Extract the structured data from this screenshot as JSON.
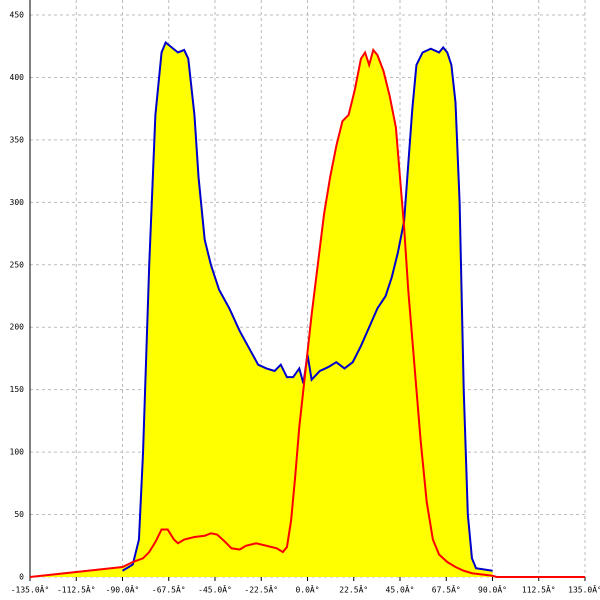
{
  "chart_data": {
    "type": "area",
    "xlim": [
      -135,
      135
    ],
    "ylim": [
      0,
      450
    ],
    "xticks": [
      {
        "value": -135,
        "label": "-135.0Â°"
      },
      {
        "value": -112.5,
        "label": "-112.5Â°"
      },
      {
        "value": -90,
        "label": "-90.0Â°"
      },
      {
        "value": -67.5,
        "label": "-67.5Â°"
      },
      {
        "value": -45,
        "label": "-45.0Â°"
      },
      {
        "value": -22.5,
        "label": "-22.5Â°"
      },
      {
        "value": 0,
        "label": "0.0Â°"
      },
      {
        "value": 22.5,
        "label": "22.5Â°"
      },
      {
        "value": 45,
        "label": "45.0Â°"
      },
      {
        "value": 67.5,
        "label": "67.5Â°"
      },
      {
        "value": 90,
        "label": "90.0Â°"
      },
      {
        "value": 112.5,
        "label": "112.5Â°"
      },
      {
        "value": 135,
        "label": "135.0Â°"
      }
    ],
    "yticks": [
      0,
      50,
      100,
      150,
      200,
      250,
      300,
      350,
      400,
      450
    ],
    "grid": true,
    "fill_color": "#ffff00",
    "series": [
      {
        "color": "#0000cc",
        "x": [
          -90,
          -85,
          -82,
          -80,
          -77,
          -74,
          -71,
          -69,
          -66,
          -63,
          -60,
          -58,
          -55,
          -53,
          -50,
          -47,
          -43,
          -38,
          -33,
          -28,
          -24,
          -20,
          -16,
          -13,
          -10,
          -7,
          -4,
          -2,
          0,
          2,
          6,
          10,
          14,
          18,
          22,
          26,
          30,
          34,
          38,
          41,
          44,
          47,
          49,
          51,
          53,
          56,
          60,
          64,
          66,
          68,
          70,
          72,
          74,
          76,
          78,
          80,
          82,
          90
        ],
        "values": [
          5,
          10,
          30,
          100,
          250,
          370,
          420,
          428,
          424,
          420,
          422,
          415,
          370,
          320,
          270,
          250,
          230,
          215,
          197,
          182,
          170,
          167,
          165,
          170,
          160,
          160,
          167,
          155,
          178,
          158,
          165,
          168,
          172,
          167,
          172,
          185,
          200,
          215,
          225,
          240,
          260,
          285,
          330,
          375,
          410,
          420,
          423,
          420,
          424,
          420,
          410,
          380,
          300,
          150,
          50,
          15,
          7,
          5
        ]
      },
      {
        "color": "#ff0000",
        "x": [
          -135,
          -90,
          -85,
          -80,
          -77,
          -74,
          -71,
          -68,
          -65,
          -63,
          -60,
          -55,
          -50,
          -47,
          -44,
          -40,
          -37,
          -33,
          -30,
          -25,
          -20,
          -15,
          -12,
          -10,
          -8,
          -6,
          -4,
          -2,
          0,
          2,
          5,
          8,
          11,
          14,
          17,
          20,
          23,
          26,
          28,
          30,
          32,
          34,
          37,
          40,
          43,
          45,
          47,
          49,
          52,
          55,
          58,
          61,
          64,
          68,
          72,
          76,
          80,
          85,
          90,
          92,
          135
        ],
        "values": [
          0,
          8,
          12,
          15,
          20,
          28,
          38,
          38,
          30,
          27,
          30,
          32,
          33,
          35,
          34,
          28,
          23,
          22,
          25,
          27,
          25,
          23,
          20,
          24,
          45,
          80,
          120,
          150,
          180,
          210,
          250,
          290,
          320,
          345,
          365,
          370,
          390,
          415,
          420,
          410,
          422,
          418,
          405,
          385,
          360,
          320,
          280,
          230,
          170,
          110,
          60,
          30,
          18,
          12,
          8,
          5,
          3,
          2,
          1,
          0,
          0
        ]
      }
    ]
  }
}
